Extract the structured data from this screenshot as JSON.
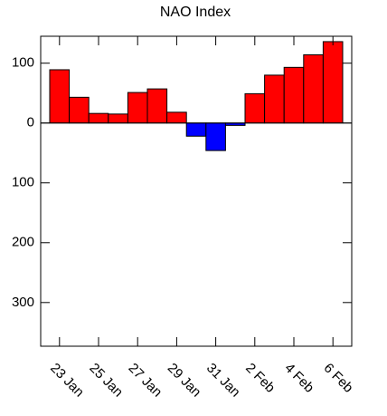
{
  "chart_data": {
    "type": "bar",
    "title": "NAO Index",
    "categories": [
      "23 Jan",
      null,
      "25 Jan",
      null,
      "27 Jan",
      null,
      "29 Jan",
      null,
      "31 Jan",
      null,
      "2 Feb",
      null,
      "4 Feb",
      null,
      "6 Feb"
    ],
    "values": [
      89,
      43,
      16,
      15,
      51,
      57,
      18,
      -22,
      -46,
      -4,
      49,
      80,
      93,
      114,
      136
    ],
    "positive_color": "#ff0000",
    "negative_color": "#0000ff",
    "ylim": [
      -373,
      145
    ],
    "yticks": [
      {
        "value": -300,
        "label": "300"
      },
      {
        "value": -200,
        "label": "200"
      },
      {
        "value": -100,
        "label": "100"
      },
      0,
      100
    ]
  }
}
